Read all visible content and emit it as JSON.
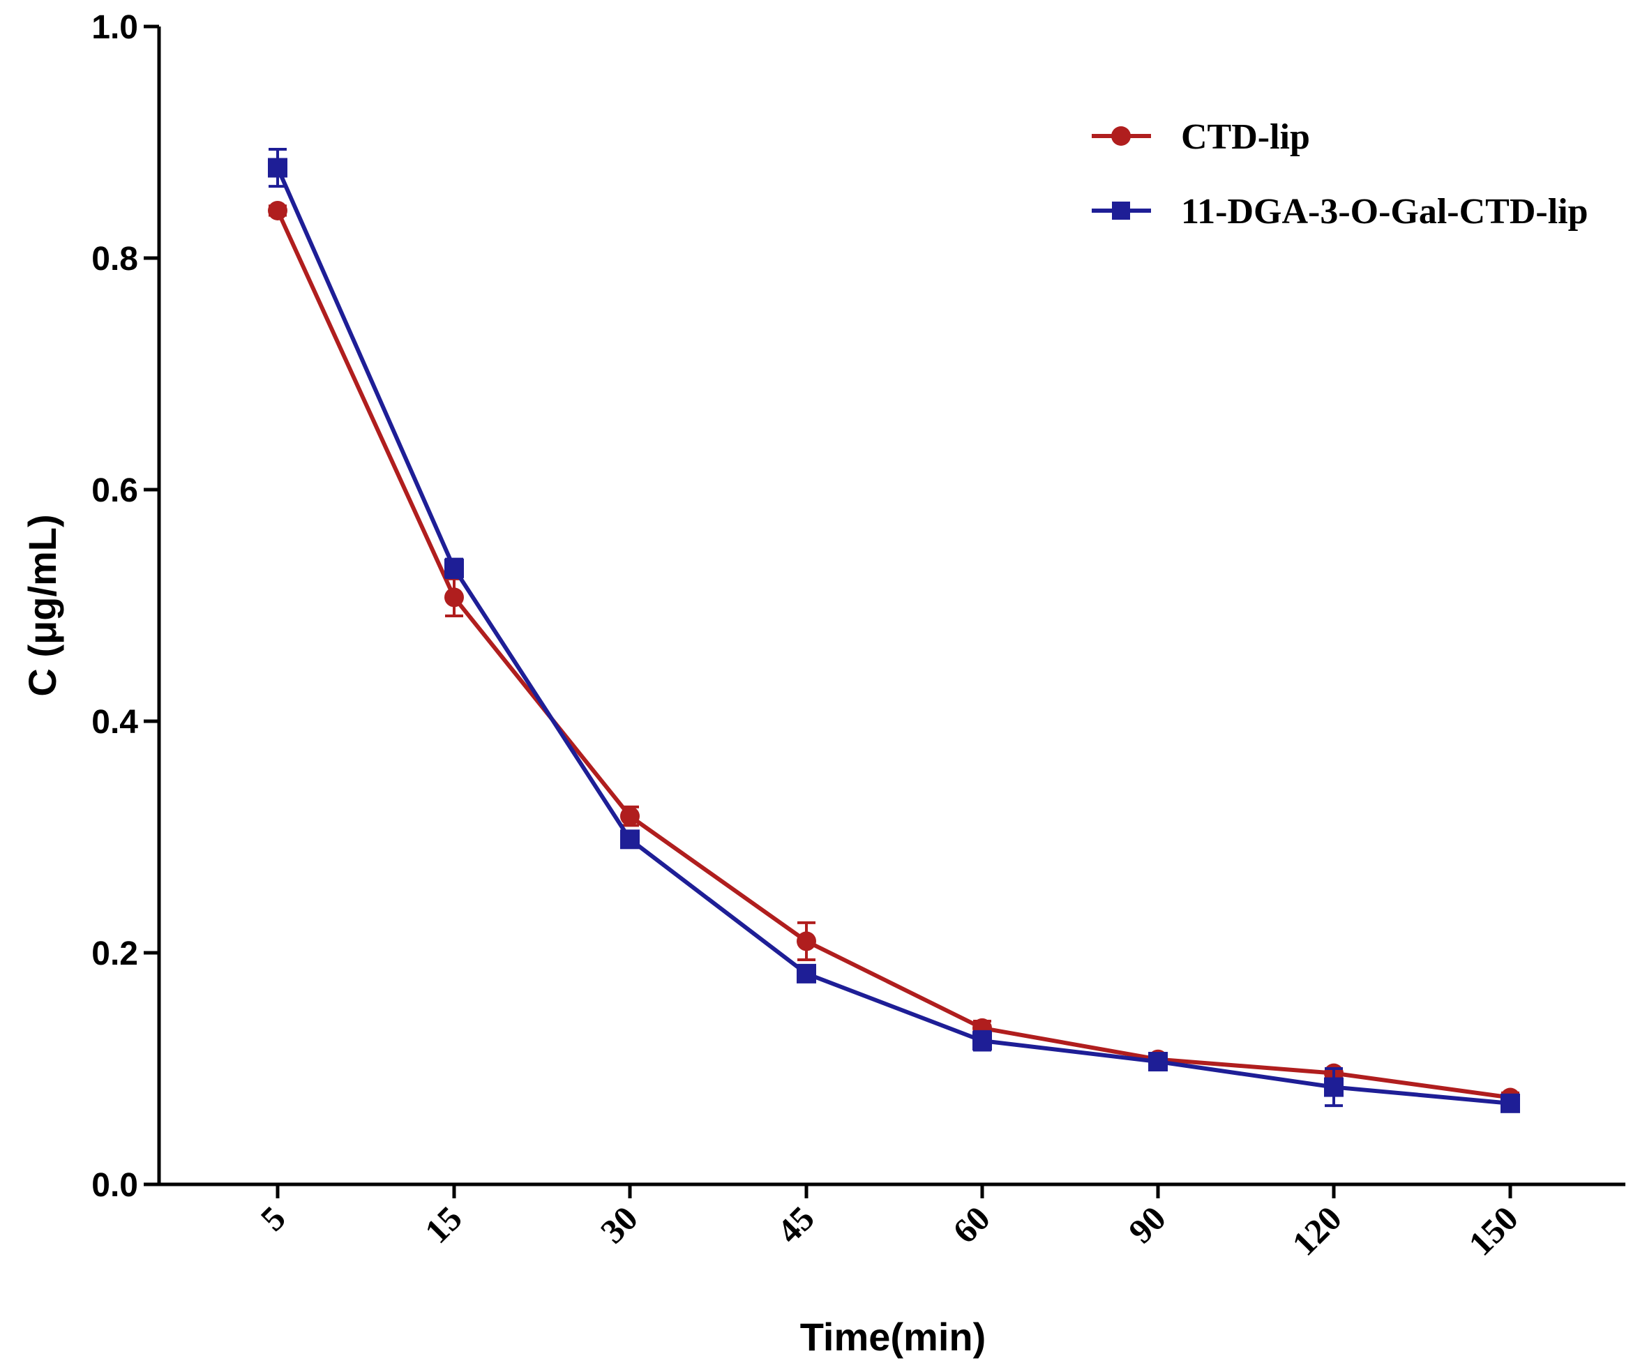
{
  "chart_data": {
    "type": "line",
    "title": "",
    "xlabel": "Time(min)",
    "ylabel": "C (μg/mL)",
    "categories": [
      "5",
      "15",
      "30",
      "45",
      "60",
      "90",
      "120",
      "150"
    ],
    "ylim": [
      0,
      1.0
    ],
    "yticks": [
      0.0,
      0.2,
      0.4,
      0.6,
      0.8,
      1.0
    ],
    "ytick_labels": [
      "0.0",
      "0.2",
      "0.4",
      "0.6",
      "0.8",
      "1.0"
    ],
    "grid": false,
    "legend_position": "top-right",
    "series": [
      {
        "name": "CTD-lip",
        "color": "#B01E1E",
        "marker": "circle",
        "values": [
          0.841,
          0.507,
          0.318,
          0.21,
          0.135,
          0.108,
          0.096,
          0.075
        ],
        "errors": [
          0.004,
          0.016,
          0.008,
          0.016,
          0.006,
          0.005,
          0.004,
          0.004
        ]
      },
      {
        "name": "11-DGA-3-O-Gal-CTD-lip",
        "color": "#1E1E96",
        "marker": "square",
        "values": [
          0.878,
          0.532,
          0.298,
          0.182,
          0.124,
          0.106,
          0.084,
          0.07
        ],
        "errors": [
          0.016,
          0.008,
          0.006,
          0.006,
          0.008,
          0.006,
          0.016,
          0.005
        ]
      }
    ]
  }
}
